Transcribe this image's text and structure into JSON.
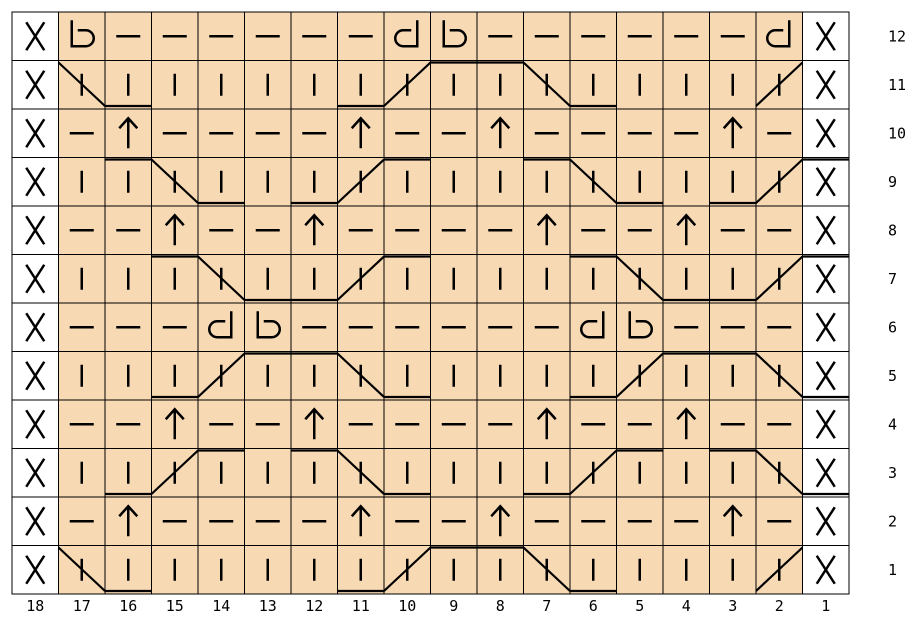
{
  "chart": {
    "columns": 18,
    "rows": 12,
    "row_numbers": [
      "1",
      "2",
      "3",
      "4",
      "5",
      "6",
      "7",
      "8",
      "9",
      "10",
      "11",
      "12"
    ],
    "column_numbers": [
      "18",
      "17",
      "16",
      "15",
      "14",
      "13",
      "12",
      "11",
      "10",
      "9",
      "8",
      "7",
      "6",
      "5",
      "4",
      "3",
      "2",
      "1"
    ],
    "grid": [
      [
        "X",
        "b",
        "-",
        "-",
        "-",
        "-",
        "-",
        "-",
        "d",
        "b",
        "-",
        "-",
        "-",
        "-",
        "-",
        "-",
        "d",
        "X"
      ],
      [
        "X",
        "|",
        "|",
        "|",
        "|",
        "|",
        "|",
        "|",
        "|",
        "|",
        "|",
        "|",
        "|",
        "|",
        "|",
        "|",
        "|",
        "X"
      ],
      [
        "X",
        "-",
        "^",
        "-",
        "-",
        "-",
        "-",
        "^",
        "-",
        "-",
        "^",
        "-",
        "-",
        "-",
        "-",
        "^",
        "-",
        "X"
      ],
      [
        "X",
        "|",
        "|",
        "|",
        "|",
        "|",
        "|",
        "|",
        "|",
        "|",
        "|",
        "|",
        "|",
        "|",
        "|",
        "|",
        "|",
        "X"
      ],
      [
        "X",
        "-",
        "-",
        "^",
        "-",
        "-",
        "^",
        "-",
        "-",
        "-",
        "-",
        "^",
        "-",
        "-",
        "^",
        "-",
        "-",
        "X"
      ],
      [
        "X",
        "|",
        "|",
        "|",
        "|",
        "|",
        "|",
        "|",
        "|",
        "|",
        "|",
        "|",
        "|",
        "|",
        "|",
        "|",
        "|",
        "X"
      ],
      [
        "X",
        "-",
        "-",
        "-",
        "d",
        "b",
        "-",
        "-",
        "-",
        "-",
        "-",
        "-",
        "d",
        "b",
        "-",
        "-",
        "-",
        "X"
      ],
      [
        "X",
        "|",
        "|",
        "|",
        "|",
        "|",
        "|",
        "|",
        "|",
        "|",
        "|",
        "|",
        "|",
        "|",
        "|",
        "|",
        "|",
        "X"
      ],
      [
        "X",
        "-",
        "-",
        "^",
        "-",
        "-",
        "^",
        "-",
        "-",
        "-",
        "-",
        "^",
        "-",
        "-",
        "^",
        "-",
        "-",
        "X"
      ],
      [
        "X",
        "|",
        "|",
        "|",
        "|",
        "|",
        "|",
        "|",
        "|",
        "|",
        "|",
        "|",
        "|",
        "|",
        "|",
        "|",
        "|",
        "X"
      ],
      [
        "X",
        "-",
        "^",
        "-",
        "-",
        "-",
        "-",
        "^",
        "-",
        "-",
        "^",
        "-",
        "-",
        "-",
        "-",
        "^",
        "-",
        "X"
      ],
      [
        "X",
        "|",
        "|",
        "|",
        "|",
        "|",
        "|",
        "|",
        "|",
        "|",
        "|",
        "|",
        "|",
        "|",
        "|",
        "|",
        "|",
        "X"
      ]
    ],
    "cable_lines": [
      {
        "row": 1,
        "segments": [
          [
            1,
            "t",
            1,
            "t"
          ],
          [
            1,
            "t",
            2,
            "b"
          ],
          [
            2,
            "b",
            3,
            "b"
          ],
          [
            7,
            "b",
            8,
            "b"
          ],
          [
            8,
            "b",
            9,
            "t"
          ],
          [
            9,
            "t",
            11,
            "t"
          ],
          [
            11,
            "t",
            12,
            "b"
          ],
          [
            12,
            "b",
            13,
            "b"
          ],
          [
            16,
            "b",
            17,
            "t"
          ],
          [
            17,
            "t",
            17,
            "t"
          ]
        ]
      },
      {
        "row": 3,
        "segments": [
          [
            2,
            "b",
            3,
            "b"
          ],
          [
            3,
            "b",
            4,
            "t"
          ],
          [
            4,
            "t",
            5,
            "t"
          ],
          [
            6,
            "t",
            7,
            "t"
          ],
          [
            7,
            "t",
            8,
            "b"
          ],
          [
            8,
            "b",
            9,
            "b"
          ],
          [
            11,
            "b",
            12,
            "b"
          ],
          [
            12,
            "b",
            13,
            "t"
          ],
          [
            13,
            "t",
            14,
            "t"
          ],
          [
            15,
            "t",
            16,
            "t"
          ],
          [
            16,
            "t",
            17,
            "b"
          ],
          [
            17,
            "b",
            18,
            "b"
          ]
        ]
      },
      {
        "row": 5,
        "segments": [
          [
            3,
            "b",
            4,
            "b"
          ],
          [
            4,
            "b",
            5,
            "t"
          ],
          [
            5,
            "t",
            7,
            "t"
          ],
          [
            7,
            "t",
            8,
            "b"
          ],
          [
            8,
            "b",
            9,
            "b"
          ],
          [
            12,
            "b",
            13,
            "b"
          ],
          [
            13,
            "b",
            14,
            "t"
          ],
          [
            14,
            "t",
            16,
            "t"
          ],
          [
            16,
            "t",
            17,
            "b"
          ],
          [
            17,
            "b",
            18,
            "b"
          ]
        ]
      },
      {
        "row": 7,
        "segments": [
          [
            3,
            "t",
            4,
            "t"
          ],
          [
            4,
            "t",
            5,
            "b"
          ],
          [
            5,
            "b",
            7,
            "b"
          ],
          [
            7,
            "b",
            8,
            "t"
          ],
          [
            8,
            "t",
            9,
            "t"
          ],
          [
            12,
            "t",
            13,
            "t"
          ],
          [
            13,
            "t",
            14,
            "b"
          ],
          [
            14,
            "b",
            16,
            "b"
          ],
          [
            16,
            "b",
            17,
            "t"
          ],
          [
            17,
            "t",
            18,
            "t"
          ]
        ]
      },
      {
        "row": 9,
        "segments": [
          [
            2,
            "t",
            3,
            "t"
          ],
          [
            3,
            "t",
            4,
            "b"
          ],
          [
            4,
            "b",
            5,
            "b"
          ],
          [
            6,
            "b",
            7,
            "b"
          ],
          [
            7,
            "b",
            8,
            "t"
          ],
          [
            8,
            "t",
            9,
            "t"
          ],
          [
            11,
            "t",
            12,
            "t"
          ],
          [
            12,
            "t",
            13,
            "b"
          ],
          [
            13,
            "b",
            14,
            "b"
          ],
          [
            15,
            "b",
            16,
            "b"
          ],
          [
            16,
            "b",
            17,
            "t"
          ],
          [
            17,
            "t",
            18,
            "t"
          ]
        ]
      },
      {
        "row": 11,
        "segments": [
          [
            1,
            "t",
            1,
            "t"
          ],
          [
            1,
            "t",
            2,
            "b"
          ],
          [
            2,
            "b",
            3,
            "b"
          ],
          [
            7,
            "b",
            8,
            "b"
          ],
          [
            8,
            "b",
            9,
            "t"
          ],
          [
            9,
            "t",
            11,
            "t"
          ],
          [
            11,
            "t",
            12,
            "b"
          ],
          [
            12,
            "b",
            13,
            "b"
          ],
          [
            16,
            "b",
            17,
            "t"
          ],
          [
            17,
            "t",
            17,
            "t"
          ]
        ]
      }
    ],
    "colors": {
      "background": "#ffffff",
      "stitch_cell": "#f7d9b4",
      "edge_cell": "#ffffff",
      "grid_line": "#000000",
      "symbol": "#000000"
    }
  }
}
